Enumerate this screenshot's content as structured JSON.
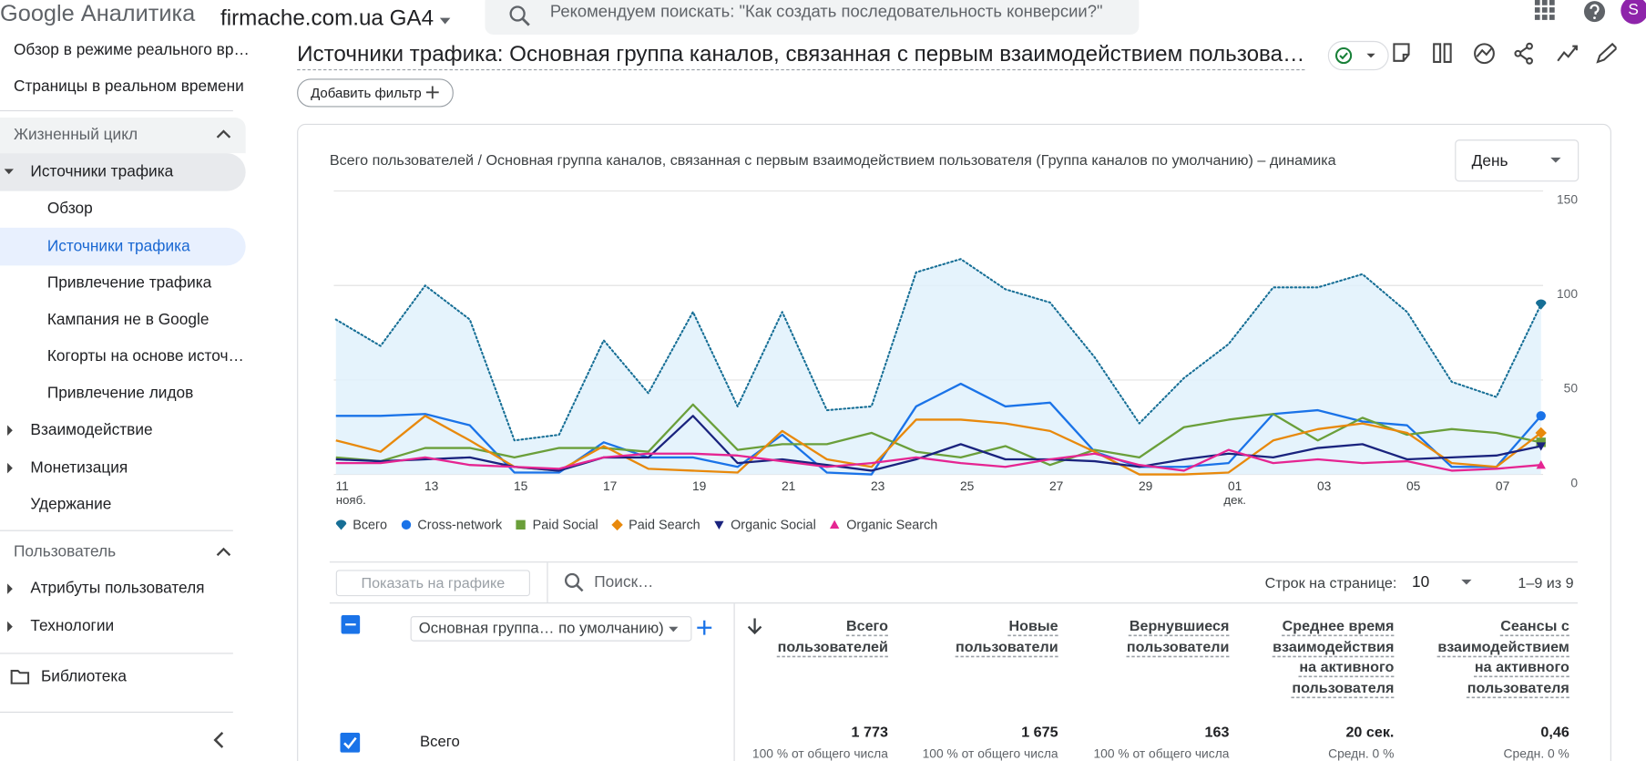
{
  "header": {
    "logo": "Google Аналитика",
    "property": "firmache.com.ua GA4",
    "search_placeholder": "Рекомендуем поискать: \"Как создать последовательность конверсии?\"",
    "avatar": "S"
  },
  "sidebar": {
    "items": [
      "Обзор в режиме реального вр…",
      "Страницы в реальном времени",
      "Жизненный цикл",
      "Источники трафика",
      "Обзор",
      "Источники трафика",
      "Привлечение трафика",
      "Кампания не в Google",
      "Когорты на основе источ…",
      "Привлечение лидов",
      "Взаимодействие",
      "Монетизация",
      "Удержание",
      "Пользователь",
      "Атрибуты пользователя",
      "Технологии",
      "Библиотека"
    ]
  },
  "report": {
    "title": "Источники трафика: Основная группа каналов, связанная с первым взаимодействием пользова…",
    "add_filter": "Добавить фильтр"
  },
  "chart_data": {
    "type": "line",
    "title": "Всего пользователей / Основная группа каналов, связанная с первым взаимодействием пользователя (Группа каналов по умолчанию) – динамика",
    "period": "День",
    "categories": [
      "11",
      null,
      "13",
      null,
      "15",
      null,
      "17",
      null,
      "19",
      null,
      "21",
      null,
      "23",
      null,
      "25",
      null,
      "27",
      null,
      "29",
      null,
      "01",
      null,
      "03",
      null,
      "05",
      null,
      "07",
      null
    ],
    "category_months": [
      "нояб.",
      null,
      null,
      null,
      null,
      null,
      null,
      null,
      null,
      null,
      null,
      null,
      null,
      null,
      null,
      null,
      null,
      null,
      null,
      null,
      "дек.",
      null,
      null,
      null,
      null,
      null,
      null,
      null
    ],
    "ylim": [
      0,
      150
    ],
    "yticks": [
      0,
      50,
      100,
      150
    ],
    "grid": true,
    "y_axis_side": "right",
    "series": [
      {
        "name": "Всего",
        "color": "#176f96",
        "marker": "pin",
        "style": "dotted",
        "area": true,
        "values": [
          82,
          68,
          100,
          82,
          18,
          21,
          71,
          43,
          86,
          36,
          86,
          34,
          36,
          107,
          114,
          98,
          91,
          62,
          27,
          51,
          69,
          99,
          99,
          106,
          86,
          49,
          41,
          90
        ]
      },
      {
        "name": "Cross-network",
        "color": "#1a73e8",
        "marker": "circle",
        "values": [
          31,
          31,
          32,
          26,
          1,
          1,
          17,
          9,
          9,
          4,
          21,
          1,
          0,
          36,
          48,
          36,
          38,
          12,
          4,
          4,
          6,
          32,
          34,
          28,
          26,
          4,
          4,
          31
        ]
      },
      {
        "name": "Paid Social",
        "color": "#6a9f3a",
        "marker": "square",
        "values": [
          9,
          7,
          14,
          14,
          9,
          14,
          14,
          12,
          37,
          13,
          16,
          16,
          22,
          12,
          9,
          15,
          5,
          13,
          9,
          25,
          29,
          32,
          18,
          30,
          21,
          24,
          22,
          17
        ]
      },
      {
        "name": "Paid Search",
        "color": "#e8890c",
        "marker": "diamond",
        "values": [
          18,
          12,
          31,
          18,
          4,
          2,
          15,
          3,
          2,
          1,
          23,
          8,
          4,
          29,
          29,
          27,
          23,
          12,
          0,
          0,
          1,
          18,
          24,
          27,
          22,
          6,
          4,
          22
        ]
      },
      {
        "name": "Organic Social",
        "color": "#1a237e",
        "marker": "triangle-down",
        "values": [
          8,
          7,
          8,
          9,
          4,
          2,
          9,
          9,
          31,
          6,
          8,
          5,
          2,
          8,
          16,
          8,
          8,
          7,
          4,
          8,
          11,
          9,
          14,
          16,
          8,
          9,
          10,
          15
        ]
      },
      {
        "name": "Organic Search",
        "color": "#e52592",
        "marker": "triangle-up",
        "values": [
          6,
          6,
          9,
          5,
          4,
          3,
          9,
          11,
          11,
          10,
          7,
          4,
          6,
          9,
          6,
          4,
          8,
          11,
          5,
          2,
          13,
          6,
          8,
          6,
          7,
          2,
          3,
          5
        ]
      }
    ]
  },
  "table": {
    "show_on_chart": "Показать на графике",
    "search_placeholder": "Поиск…",
    "rows_per_page_label": "Строк на странице:",
    "rows_per_page": "10",
    "pagination": "1–9 из 9",
    "dimension": "Основная группа… по умолчанию)",
    "columns": [
      [
        "Всего",
        "пользователей"
      ],
      [
        "Новые",
        "пользователи"
      ],
      [
        "Вернувшиеся",
        "пользователи"
      ],
      [
        "Среднее время",
        "взаимодействия",
        "на активного",
        "пользователя"
      ],
      [
        "Сеансы с",
        "взаимодействием",
        "на активного",
        "пользователя"
      ]
    ],
    "rows": [
      {
        "label": "Всего",
        "cells": [
          {
            "value": "1 773",
            "note": "100 % от общего числа"
          },
          {
            "value": "1 675",
            "note": "100 % от общего числа"
          },
          {
            "value": "163",
            "note": "100 % от общего числа"
          },
          {
            "value": "20 сек.",
            "note": "Средн. 0 %"
          },
          {
            "value": "0,46",
            "note": "Средн. 0 %"
          }
        ]
      }
    ]
  }
}
